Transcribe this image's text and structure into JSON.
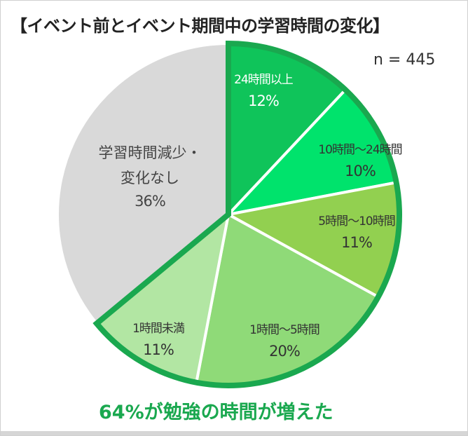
{
  "chart_data": {
    "type": "pie",
    "title": "【イベント前とイベント期間中の学習時間の変化】",
    "annotation": "n = 445",
    "start_angle": "12 o'clock",
    "direction": "clockwise",
    "slices": [
      {
        "label": "24時間以上",
        "value": 12,
        "value_label": "12%",
        "color": "#0fc45a",
        "text_color": "#ffffff"
      },
      {
        "label": "10時間～24時間",
        "value": 10,
        "value_label": "10%",
        "color": "#00e36c",
        "text_color": "#333333"
      },
      {
        "label": "5時間～10時間",
        "value": 11,
        "value_label": "11%",
        "color": "#92d050",
        "text_color": "#333333"
      },
      {
        "label": "1時間～5時間",
        "value": 20,
        "value_label": "20%",
        "color": "#8fda78",
        "text_color": "#333333"
      },
      {
        "label": "1時間未満",
        "value": 11,
        "value_label": "11%",
        "color": "#b2e6a3",
        "text_color": "#333333"
      },
      {
        "label": "学習時間減少・変化なし",
        "value": 36,
        "value_label": "36%",
        "color": "#d9d9d9",
        "text_color": "#444444"
      }
    ],
    "highlight_outline_color": "#1aa84f",
    "footer": "64%が勉強の時間が増えた"
  }
}
